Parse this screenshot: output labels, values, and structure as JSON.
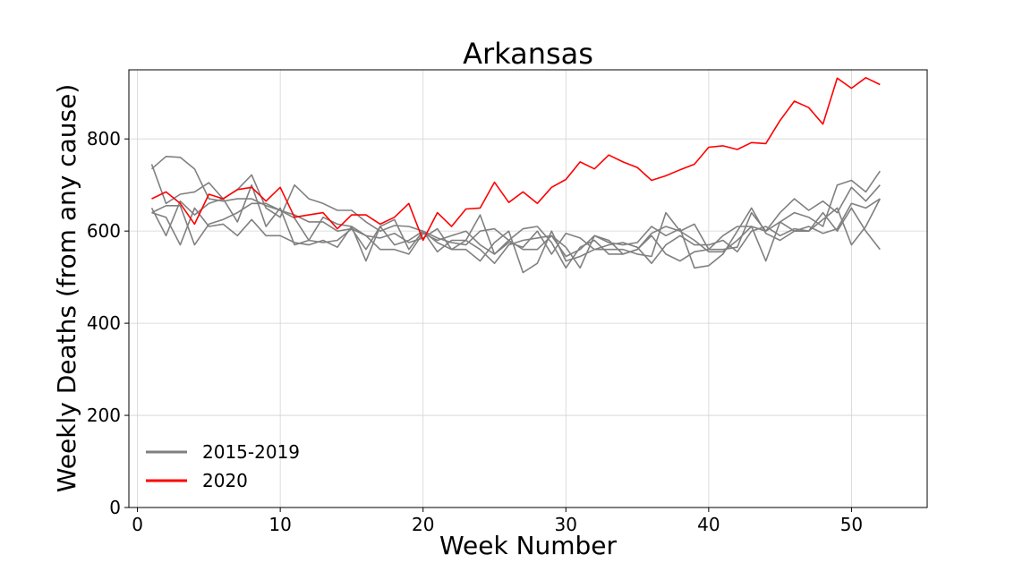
{
  "chart_data": {
    "type": "line",
    "title": "Arkansas",
    "xlabel": "Week Number",
    "ylabel": "Weekly Deaths (from any cause)",
    "xlim": [
      -0.6,
      55.3
    ],
    "ylim": [
      0,
      950
    ],
    "xticks": [
      0,
      10,
      20,
      30,
      40,
      50
    ],
    "yticks": [
      0,
      200,
      400,
      600,
      800
    ],
    "grid": true,
    "legend_position": "bottom-left",
    "legend": [
      {
        "label": "2015-2019",
        "color": "#808080"
      },
      {
        "label": "2020",
        "color": "#ff0000"
      }
    ],
    "x": [
      1,
      2,
      3,
      4,
      5,
      6,
      7,
      8,
      9,
      10,
      11,
      12,
      13,
      14,
      15,
      16,
      17,
      18,
      19,
      20,
      21,
      22,
      23,
      24,
      25,
      26,
      27,
      28,
      29,
      30,
      31,
      32,
      33,
      34,
      35,
      36,
      37,
      38,
      39,
      40,
      41,
      42,
      43,
      44,
      45,
      46,
      47,
      48,
      49,
      50,
      51,
      52
    ],
    "series": [
      {
        "group": "2015-2019",
        "color": "#808080",
        "values": [
          745,
          660,
          680,
          685,
          705,
          670,
          690,
          722,
          650,
          630,
          700,
          670,
          660,
          645,
          645,
          620,
          600,
          612,
          610,
          600,
          585,
          575,
          570,
          600,
          605,
          580,
          605,
          610,
          575,
          520,
          565,
          580,
          550,
          550,
          560,
          595,
          610,
          600,
          580,
          555,
          555,
          580,
          610,
          600,
          640,
          670,
          645,
          665,
          640,
          695,
          665,
          700
        ]
      },
      {
        "group": "2015-2019",
        "color": "#808080",
        "values": [
          735,
          762,
          760,
          735,
          670,
          665,
          670,
          670,
          655,
          645,
          628,
          580,
          575,
          580,
          605,
          560,
          610,
          625,
          560,
          600,
          555,
          580,
          580,
          635,
          550,
          575,
          565,
          600,
          550,
          595,
          585,
          560,
          560,
          560,
          550,
          545,
          640,
          600,
          615,
          560,
          590,
          610,
          610,
          535,
          620,
          600,
          600,
          640,
          600,
          650,
          600,
          560
        ]
      },
      {
        "group": "2015-2019",
        "color": "#808080",
        "values": [
          640,
          630,
          570,
          650,
          610,
          615,
          590,
          625,
          590,
          590,
          575,
          570,
          580,
          565,
          610,
          535,
          610,
          570,
          580,
          600,
          575,
          560,
          560,
          535,
          575,
          600,
          510,
          530,
          600,
          535,
          545,
          560,
          570,
          575,
          565,
          530,
          570,
          590,
          570,
          570,
          580,
          555,
          600,
          610,
          590,
          605,
          600,
          625,
          650,
          570,
          610,
          670
        ]
      },
      {
        "group": "2015-2019",
        "color": "#808080",
        "values": [
          640,
          655,
          655,
          570,
          615,
          625,
          640,
          660,
          660,
          645,
          635,
          620,
          620,
          600,
          605,
          590,
          585,
          595,
          575,
          585,
          605,
          560,
          580,
          560,
          530,
          570,
          580,
          585,
          590,
          545,
          560,
          590,
          580,
          550,
          560,
          590,
          550,
          535,
          555,
          560,
          560,
          565,
          640,
          600,
          620,
          640,
          630,
          610,
          700,
          710,
          685,
          730
        ]
      },
      {
        "group": "2015-2019",
        "color": "#808080",
        "values": [
          650,
          590,
          665,
          635,
          660,
          670,
          620,
          700,
          610,
          650,
          570,
          580,
          630,
          615,
          610,
          590,
          560,
          560,
          550,
          595,
          580,
          590,
          600,
          570,
          550,
          580,
          560,
          560,
          590,
          565,
          520,
          590,
          575,
          570,
          575,
          610,
          590,
          605,
          520,
          525,
          550,
          600,
          650,
          595,
          580,
          600,
          610,
          595,
          605,
          660,
          650,
          670
        ]
      },
      {
        "group": "2020",
        "color": "#ff0000",
        "values": [
          670,
          685,
          660,
          615,
          680,
          670,
          690,
          695,
          665,
          695,
          630,
          635,
          640,
          605,
          635,
          635,
          615,
          630,
          660,
          580,
          640,
          610,
          648,
          650,
          706,
          662,
          685,
          660,
          695,
          712,
          750,
          735,
          765,
          750,
          738,
          710,
          720,
          733,
          745,
          782,
          785,
          777,
          792,
          790,
          840,
          882,
          868,
          832,
          932,
          910,
          933,
          918
        ]
      }
    ]
  }
}
